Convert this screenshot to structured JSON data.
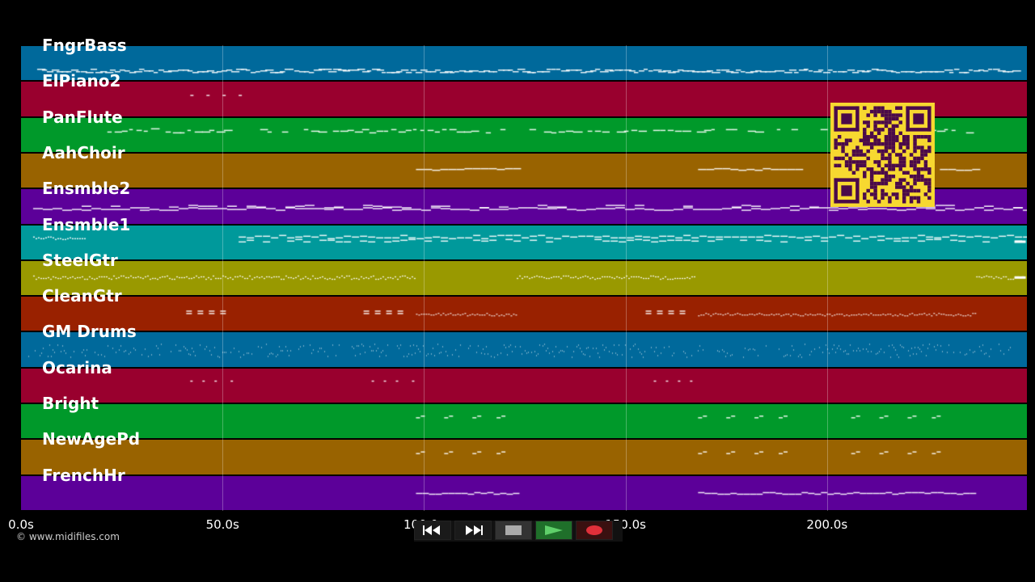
{
  "tracks": [
    {
      "name": "FngrBass",
      "color": "#00699b",
      "pattern": "line-low"
    },
    {
      "name": "ElPiano2",
      "color": "#99002e",
      "pattern": "dashes-early"
    },
    {
      "name": "PanFlute",
      "color": "#00992a",
      "pattern": "melody"
    },
    {
      "name": "AahChoir",
      "color": "#996300",
      "pattern": "sustain"
    },
    {
      "name": "Ensmble2",
      "color": "#5c0099",
      "pattern": "pad"
    },
    {
      "name": "Ensmble1",
      "color": "#00999b",
      "pattern": "strings"
    },
    {
      "name": "SteelGtr",
      "color": "#999900",
      "pattern": "arpeggio"
    },
    {
      "name": "CleanGtr",
      "color": "#992100",
      "pattern": "chords"
    },
    {
      "name": "GM Drums",
      "color": "#00699b",
      "pattern": "drums"
    },
    {
      "name": "Ocarina",
      "color": "#99002e",
      "pattern": "dots"
    },
    {
      "name": "Bright",
      "color": "#00992a",
      "pattern": "motif"
    },
    {
      "name": "NewAgePd",
      "color": "#996300",
      "pattern": "motif"
    },
    {
      "name": "FrenchHr",
      "color": "#5c0099",
      "pattern": "horn"
    }
  ],
  "timeline": {
    "duration_s": 249.6,
    "ticks": [
      {
        "t": 0,
        "label": "0.0s"
      },
      {
        "t": 50,
        "label": "50.0s"
      },
      {
        "t": 100,
        "label": "100.0s"
      },
      {
        "t": 150,
        "label": "150.0s"
      },
      {
        "t": 200,
        "label": "200.0s"
      }
    ]
  },
  "footer": {
    "copyright": "© www.midifiles.com"
  },
  "transport": {
    "buttons": [
      {
        "name": "rewind-button",
        "icon": "rewind-icon",
        "bg": "#1a1a1a"
      },
      {
        "name": "fast-forward-button",
        "icon": "fast-forward-icon",
        "bg": "#1a1a1a"
      },
      {
        "name": "stop-button",
        "icon": "stop-icon",
        "bg": "#333333"
      },
      {
        "name": "play-button",
        "icon": "play-icon",
        "bg": "#1f6f2a"
      },
      {
        "name": "record-button",
        "icon": "record-icon",
        "bg": "#3a1010"
      }
    ]
  },
  "qr": {
    "bg": "#f7d830",
    "fg": "#4a0a4a"
  }
}
